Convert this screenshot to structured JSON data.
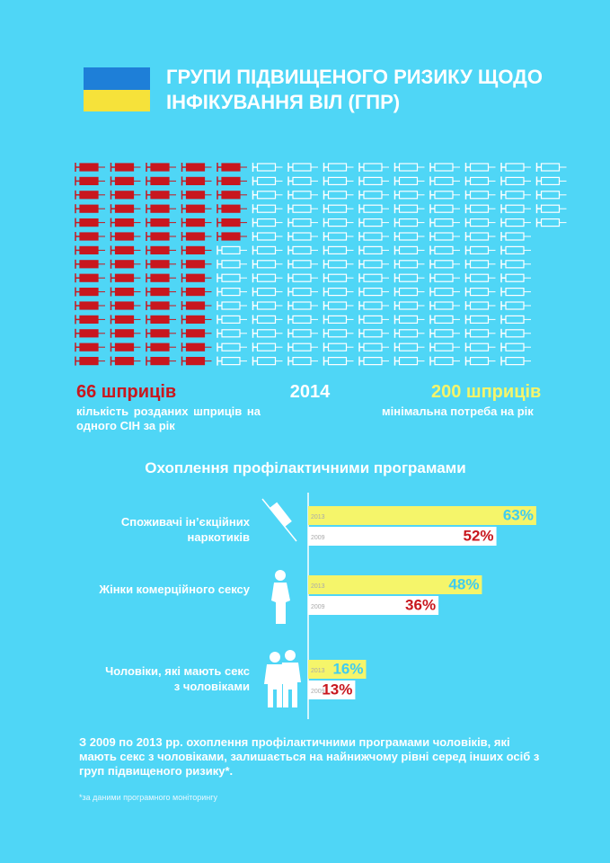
{
  "header": {
    "title": "ГРУПИ ПІДВИЩЕНОГО РИЗИКУ ЩОДО ІНФІКУВАННЯ ВІЛ (ГПР)"
  },
  "chart_data": [
    {
      "type": "pictogram",
      "title": "2014",
      "categories": [
        "кількість розданих шприців на одного СІН за рік",
        "мінімальна потреба на рік"
      ],
      "values": [
        66,
        200
      ],
      "value_labels": [
        "66 шприців",
        "200 шприців"
      ],
      "colors": [
        "#c8171e",
        "#ffffff"
      ],
      "label_colors": [
        "#c8171e",
        "#f5f56a"
      ]
    },
    {
      "type": "bar",
      "title": "Охоплення профілактичними програмами",
      "categories": [
        "Споживачі ін’єкційних наркотиків",
        "Жінки комерційного сексу",
        "Чоловіки, які мають секс з чоловіками"
      ],
      "series": [
        {
          "name": "2013",
          "color": "#f5f56a",
          "label_color": "#3fcdf0",
          "values": [
            63,
            48,
            16
          ],
          "value_labels": [
            "63%",
            "48%",
            "16%"
          ]
        },
        {
          "name": "2009",
          "color": "#ffffff",
          "label_color": "#c8171e",
          "values": [
            52,
            36,
            13
          ],
          "value_labels": [
            "52%",
            "36%",
            "13%"
          ]
        }
      ],
      "xlim": [
        0,
        100
      ]
    }
  ],
  "footer": {
    "text": "З 2009 по 2013 рр. охоплення профілактичними програмами чоловіків, які мають секс з чоловіками, залишається на найнижчому рівні серед інших осіб з груп підвищеного ризику*.",
    "note": "*за даними програмного моніторингу"
  }
}
